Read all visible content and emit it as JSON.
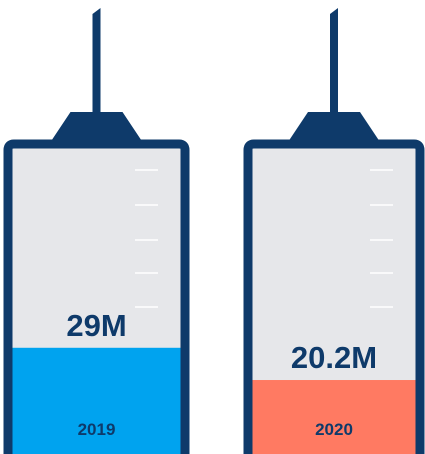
{
  "chart_data": {
    "type": "bar",
    "categories": [
      "2019",
      "2020"
    ],
    "values": [
      29000000,
      20200000
    ],
    "value_labels": [
      "29M",
      "20.2M"
    ],
    "colors": [
      "#00a3ef",
      "#ff7a62"
    ],
    "ylim": [
      0,
      83000000
    ]
  }
}
